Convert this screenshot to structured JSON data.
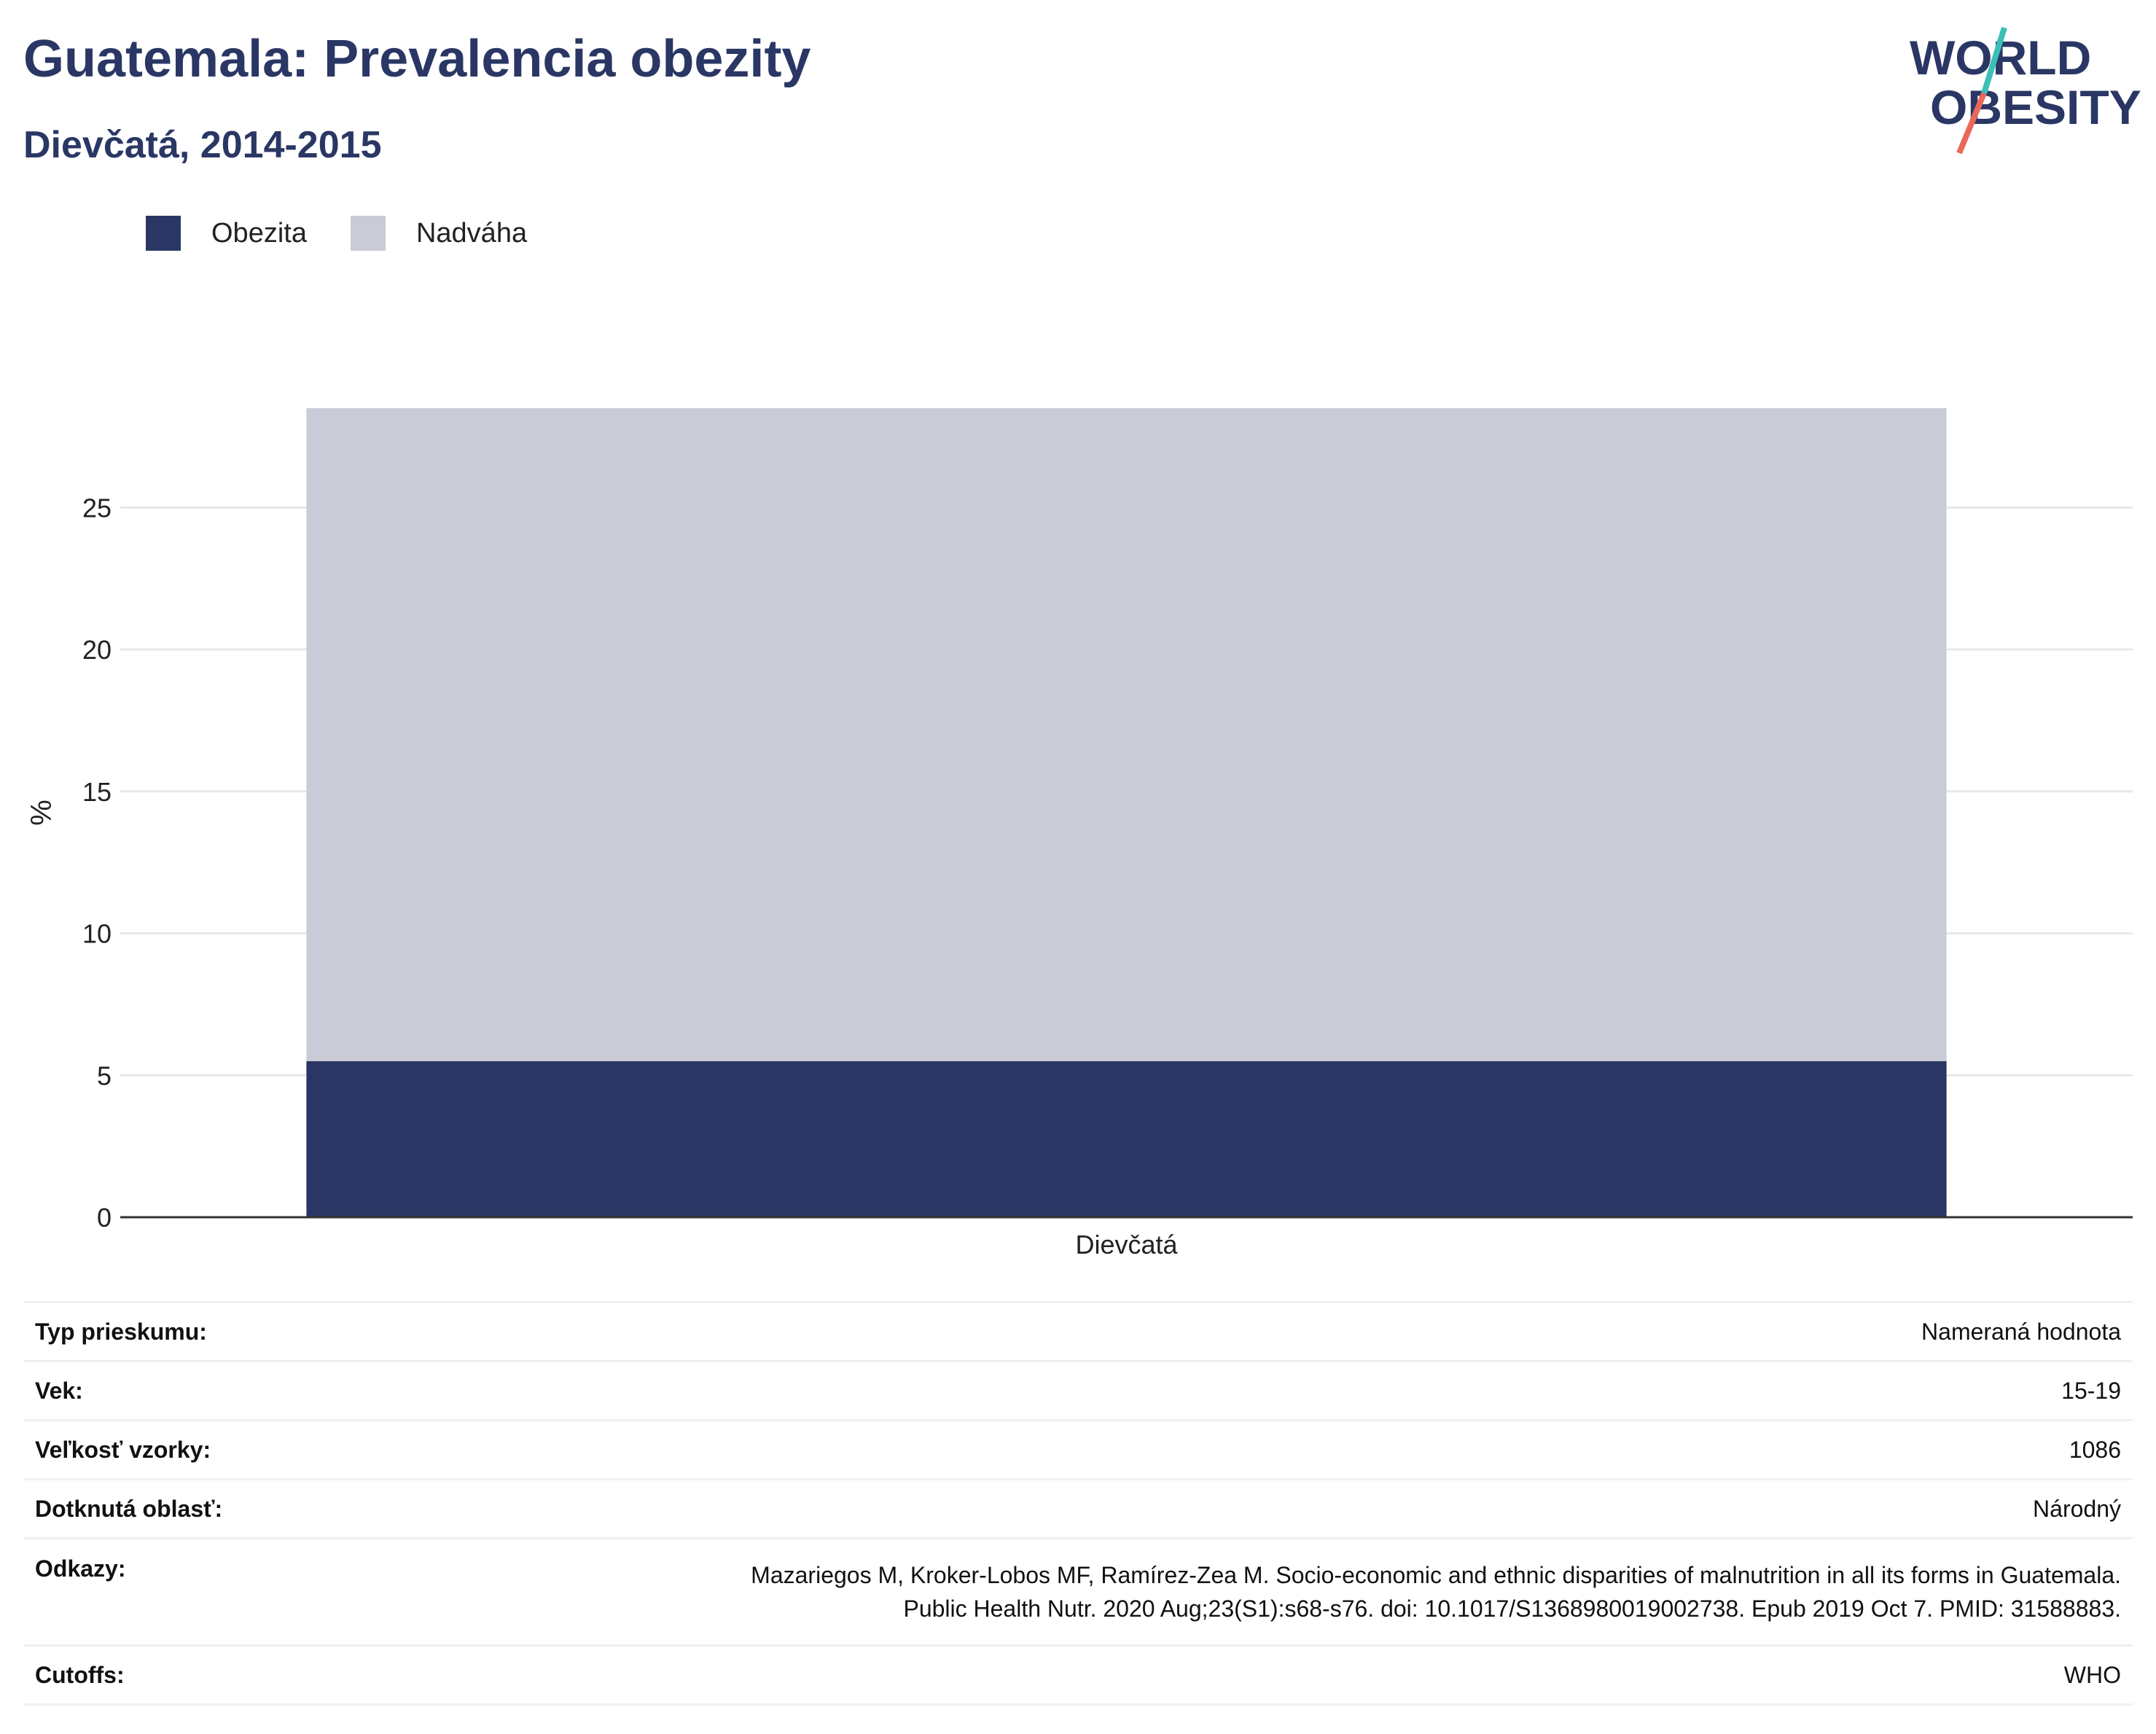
{
  "header": {
    "title": "Guatemala: Prevalencia obezity",
    "subtitle": "Dievčatá, 2014-2015"
  },
  "logo": {
    "line1": "WORLD",
    "line2": "OBESITY",
    "colors": {
      "text": "#2a3764",
      "slash_top": "#3bbfb8",
      "slash_bottom": "#e8685a"
    }
  },
  "legend": [
    {
      "label": "Obezita",
      "color": "#2a3764"
    },
    {
      "label": "Nadváha",
      "color": "#c9ccd7"
    }
  ],
  "chart_data": {
    "type": "bar",
    "stacked": true,
    "categories": [
      "Dievčatá"
    ],
    "series": [
      {
        "name": "Obezita",
        "values": [
          5.5
        ],
        "color": "#2a3764"
      },
      {
        "name": "Nadváha",
        "values": [
          23.0
        ],
        "color": "#c9ccd7"
      }
    ],
    "ylabel": "%",
    "ylim": [
      0,
      28.5
    ],
    "yticks": [
      0,
      5,
      10,
      15,
      20,
      25
    ],
    "grid": true,
    "legend_position": "top-left"
  },
  "info": {
    "survey_type": {
      "label": "Typ prieskumu:",
      "value": "Nameraná hodnota"
    },
    "age": {
      "label": "Vek:",
      "value": "15-19"
    },
    "sample_size": {
      "label": "Veľkosť vzorky:",
      "value": "1086"
    },
    "area": {
      "label": "Dotknutá oblasť:",
      "value": "Národný"
    },
    "references": {
      "label": "Odkazy:",
      "line1": "Mazariegos M, Kroker-Lobos MF, Ramírez-Zea M. Socio-economic and ethnic disparities of malnutrition in all its forms in Guatemala.",
      "line2": "Public Health Nutr. 2020 Aug;23(S1):s68-s76. doi: 10.1017/S1368980019002738. Epub 2019 Oct 7. PMID: 31588883."
    },
    "cutoffs": {
      "label": "Cutoffs:",
      "value": "WHO"
    }
  }
}
